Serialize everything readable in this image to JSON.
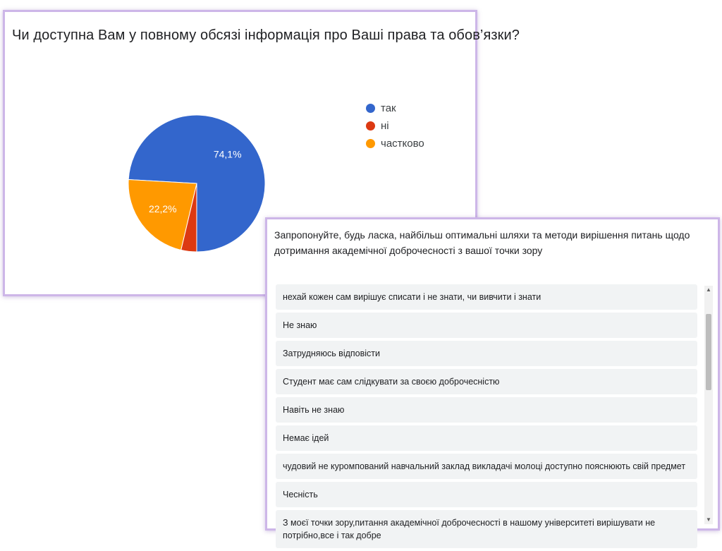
{
  "chart_data": {
    "type": "pie",
    "title": "Чи доступна Вам у повному обсязі інформація про Ваші права та обов’язки?",
    "slices": [
      {
        "label": "так",
        "value": 74.1,
        "display": "74,1%",
        "color": "#3366cc"
      },
      {
        "label": "ні",
        "value": 3.7,
        "display": "",
        "color": "#dc3912"
      },
      {
        "label": "частково",
        "value": 22.2,
        "display": "22,2%",
        "color": "#ff9900"
      }
    ],
    "legend_position": "right"
  },
  "responses": {
    "question": "Запропонуйте, будь ласка, найбільш оптимальні шляхи та методи вирішення питань щодо дотримання академічної доброчесності з вашої точки зору",
    "items": [
      "нехай кожен сам вирішує списати і не знати, чи вивчити і знати",
      "Не знаю",
      "Затрудняюсь відповісти",
      "Студент має сам слідкувати за своєю доброчесністю",
      "Навіть не знаю",
      "Немає ідей",
      "чудовий не куромпований навчальний заклад викладачі молоці доступно пояснюють свій предмет",
      "Чесність",
      "З моєї точки зору,питання академічної доброчесності в нашому університеті вирішувати не потрібно,все і так добре"
    ]
  }
}
